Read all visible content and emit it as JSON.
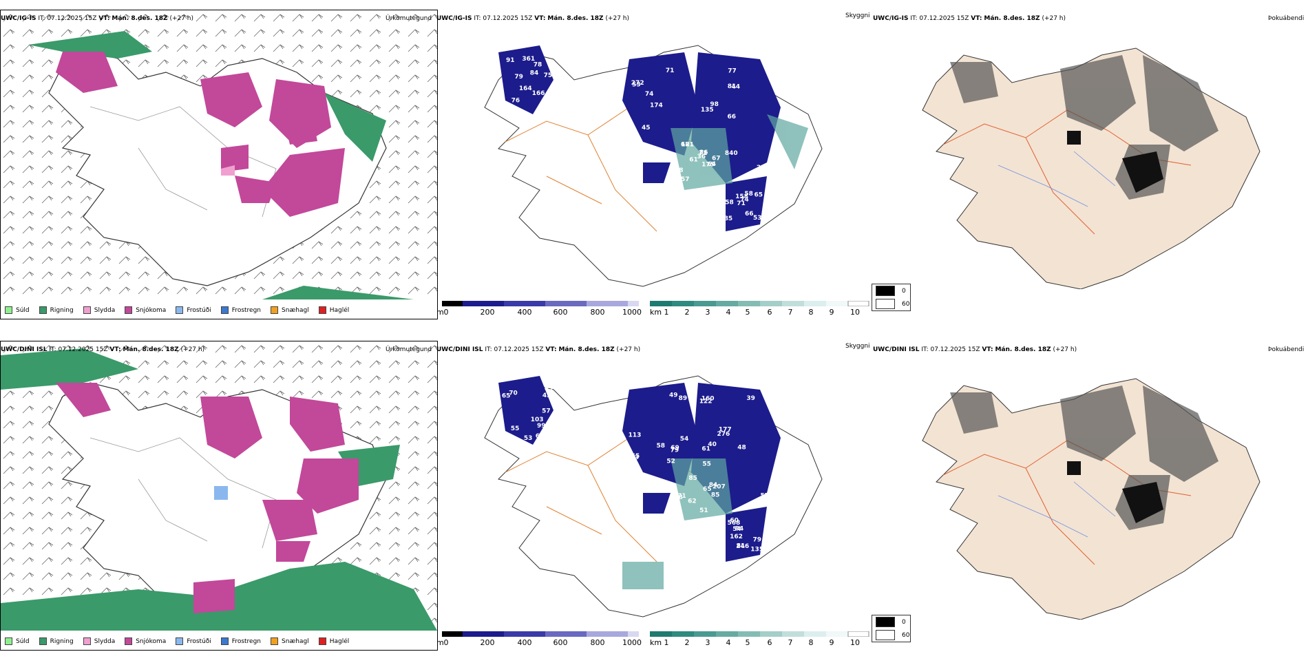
{
  "rows": [
    {
      "model": "UWC/IG-IS",
      "it_label": "IT:",
      "it_value": "07.12.2025 15Z",
      "vt_label": "VT:",
      "vt_value": "Mán. 8.des. 18Z",
      "lead": "(+27 h)",
      "precip_title": "Úrkomutegund",
      "vis_title": "Skyggni",
      "fog_title": "Þokuábendi",
      "cloud_labels": [
        "164",
        "53",
        "66",
        "85",
        "72",
        "76",
        "71",
        "44",
        "58",
        "36",
        "91",
        "121",
        "135",
        "65",
        "61",
        "84",
        "70",
        "81",
        "74",
        "38",
        "79",
        "66",
        "67",
        "158",
        "86",
        "166",
        "272",
        "77",
        "258",
        "175",
        "75",
        "174",
        "840",
        "71",
        "68",
        "78",
        "45",
        "237",
        "53",
        "64",
        "361",
        "74",
        "98",
        "66",
        "57"
      ]
    },
    {
      "model": "UWC/DINI ISL",
      "it_label": "IT:",
      "it_value": "07.12.2025 15Z",
      "vt_label": "VT:",
      "vt_value": "Mán. 8.des. 18Z",
      "lead": "(+27 h)",
      "precip_title": "Úrkomutegund",
      "vis_title": "Skyggni",
      "fog_title": "Þokuábendi",
      "cloud_labels": [
        "103",
        "54",
        "65",
        "60",
        "85",
        "62",
        "65",
        "39",
        "54",
        "51",
        "65",
        "113",
        "122",
        "135",
        "62",
        "57",
        "58",
        "48",
        "84",
        "71",
        "99",
        "89",
        "276",
        "79",
        "55",
        "70",
        "69",
        "61",
        "568",
        "84",
        "53",
        "52",
        "177",
        "162",
        "207",
        "99",
        "79",
        "40",
        "246",
        "68",
        "45",
        "49",
        "57",
        "81",
        "85",
        "55",
        "133",
        "160"
      ]
    }
  ],
  "precip_legend": [
    {
      "label": "Súld",
      "color": "#90ee90"
    },
    {
      "label": "Rigning",
      "color": "#3a9a6a"
    },
    {
      "label": "Slydda",
      "color": "#f0a0d0"
    },
    {
      "label": "Snjókoma",
      "color": "#c2489a"
    },
    {
      "label": "Frostúði",
      "color": "#8ab8ee"
    },
    {
      "label": "Frostregn",
      "color": "#3c78d0"
    },
    {
      "label": "Snæhagl",
      "color": "#f0a020"
    },
    {
      "label": "Haglél",
      "color": "#e02020"
    }
  ],
  "cloud_bar": {
    "unit": "m",
    "ticks": [
      "0",
      "200",
      "400",
      "600",
      "800",
      "1000"
    ]
  },
  "vis_bar": {
    "unit": "km",
    "ticks": [
      "1",
      "2",
      "3",
      "4",
      "5",
      "6",
      "7",
      "8",
      "9",
      "10"
    ]
  },
  "fog_legend": [
    "0",
    "60"
  ],
  "colors": {
    "rain": "#3a9a6a",
    "snow": "#c2489a",
    "cloud_dark": "#1c1c8c",
    "cloud_teal": "#5fa8a0",
    "road": "#e08030",
    "land": "#f3e3d3",
    "river": "#7090e0"
  }
}
